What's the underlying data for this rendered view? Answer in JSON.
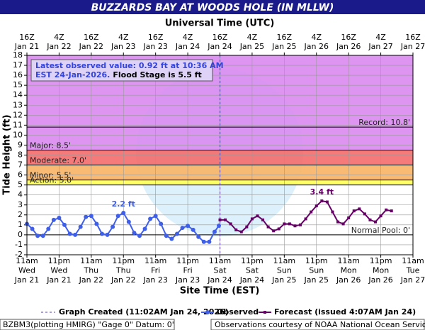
{
  "chart_data": {
    "type": "hydrograph",
    "title": "BUZZARDS BAY AT WOODS HOLE (IN MLLW)",
    "top_axis_label": "Universal Time (UTC)",
    "xlabel": "Site Time (EST)",
    "ylabel": "Tide Height (ft)",
    "xlim": [
      "2026-01-21T11:00",
      "2026-01-27T11:00"
    ],
    "ylim": [
      -2,
      18
    ],
    "yticks": [
      -2,
      -1,
      0,
      1,
      2,
      3,
      4,
      5,
      6,
      7,
      8,
      9,
      10,
      11,
      12,
      13,
      14,
      15,
      16,
      17,
      18
    ],
    "grid": true,
    "xticks": [
      {
        "value": "2026-01-21T11:00",
        "label": [
          "11am",
          "Wed",
          "Jan 21"
        ]
      },
      {
        "value": "2026-01-21T23:00",
        "label": [
          "11pm",
          "Wed",
          "Jan 21"
        ]
      },
      {
        "value": "2026-01-22T11:00",
        "label": [
          "11am",
          "Thu",
          "Jan 22"
        ]
      },
      {
        "value": "2026-01-22T23:00",
        "label": [
          "11pm",
          "Thu",
          "Jan 22"
        ]
      },
      {
        "value": "2026-01-23T11:00",
        "label": [
          "11am",
          "Fri",
          "Jan 23"
        ]
      },
      {
        "value": "2026-01-23T23:00",
        "label": [
          "11pm",
          "Fri",
          "Jan 23"
        ]
      },
      {
        "value": "2026-01-24T11:00",
        "label": [
          "11am",
          "Sat",
          "Jan 24"
        ]
      },
      {
        "value": "2026-01-24T23:00",
        "label": [
          "11pm",
          "Sat",
          "Jan 24"
        ]
      },
      {
        "value": "2026-01-25T11:00",
        "label": [
          "11am",
          "Sun",
          "Jan 25"
        ]
      },
      {
        "value": "2026-01-25T23:00",
        "label": [
          "11pm",
          "Sun",
          "Jan 25"
        ]
      },
      {
        "value": "2026-01-26T11:00",
        "label": [
          "11am",
          "Mon",
          "Jan 26"
        ]
      },
      {
        "value": "2026-01-26T23:00",
        "label": [
          "11pm",
          "Mon",
          "Jan 26"
        ]
      },
      {
        "value": "2026-01-27T11:00",
        "label": [
          "11am",
          "Tue",
          "Jan 27"
        ]
      }
    ],
    "top_xticks": [
      {
        "value": "2026-01-21T11:00",
        "label": [
          "16Z",
          "Jan 21"
        ]
      },
      {
        "value": "2026-01-21T23:00",
        "label": [
          "4Z",
          "Jan 22"
        ]
      },
      {
        "value": "2026-01-22T11:00",
        "label": [
          "16Z",
          "Jan 22"
        ]
      },
      {
        "value": "2026-01-22T23:00",
        "label": [
          "4Z",
          "Jan 23"
        ]
      },
      {
        "value": "2026-01-23T11:00",
        "label": [
          "16Z",
          "Jan 23"
        ]
      },
      {
        "value": "2026-01-23T23:00",
        "label": [
          "4Z",
          "Jan 24"
        ]
      },
      {
        "value": "2026-01-24T11:00",
        "label": [
          "16Z",
          "Jan 24"
        ]
      },
      {
        "value": "2026-01-24T23:00",
        "label": [
          "4Z",
          "Jan 25"
        ]
      },
      {
        "value": "2026-01-25T11:00",
        "label": [
          "16Z",
          "Jan 25"
        ]
      },
      {
        "value": "2026-01-25T23:00",
        "label": [
          "4Z",
          "Jan 26"
        ]
      },
      {
        "value": "2026-01-26T11:00",
        "label": [
          "16Z",
          "Jan 26"
        ]
      },
      {
        "value": "2026-01-26T23:00",
        "label": [
          "4Z",
          "Jan 27"
        ]
      },
      {
        "value": "2026-01-27T11:00",
        "label": [
          "16Z",
          "Jan 27"
        ]
      }
    ],
    "thresholds": [
      {
        "label": "Record: 10.8'",
        "value": 10.8,
        "label_side": "right"
      },
      {
        "label": "Major: 8.5'",
        "value": 8.5,
        "band_color": "#d98af0",
        "label_side": "left"
      },
      {
        "label": "Moderate: 7.0'",
        "value": 7.0,
        "band_color": "#f46c6c",
        "label_side": "left"
      },
      {
        "label": "Minor: 5.5'",
        "value": 5.5,
        "band_color": "#f8b465",
        "label_side": "left"
      },
      {
        "label": "Action: 5.0'",
        "value": 5.0,
        "band_color": "#ffff55",
        "label_side": "left"
      },
      {
        "label": "Normal Pool: 0'",
        "value": 0,
        "label_side": "right"
      }
    ],
    "created": {
      "x": "2026-01-24T11:02",
      "label": "Graph Created (11:02AM Jan 24, 2026)",
      "color": "#5a3fa0"
    },
    "latest_note": [
      "Latest observed value: 0.92 ft at 10:36 AM",
      "EST 24-Jan-2026.",
      "Flood Stage is 5.5 ft"
    ],
    "series": [
      {
        "name": "Observed",
        "color": "#3f5fe8",
        "marker": "circle",
        "peak_label": "2.2 ft",
        "x": [
          "2026-01-21T11:00",
          "2026-01-21T13:00",
          "2026-01-21T15:00",
          "2026-01-21T17:00",
          "2026-01-21T19:00",
          "2026-01-21T21:00",
          "2026-01-21T23:00",
          "2026-01-22T01:00",
          "2026-01-22T03:00",
          "2026-01-22T05:00",
          "2026-01-22T07:00",
          "2026-01-22T09:00",
          "2026-01-22T11:00",
          "2026-01-22T13:00",
          "2026-01-22T15:00",
          "2026-01-22T17:00",
          "2026-01-22T19:00",
          "2026-01-22T21:00",
          "2026-01-22T23:00",
          "2026-01-23T01:00",
          "2026-01-23T03:00",
          "2026-01-23T05:00",
          "2026-01-23T07:00",
          "2026-01-23T09:00",
          "2026-01-23T11:00",
          "2026-01-23T13:00",
          "2026-01-23T15:00",
          "2026-01-23T17:00",
          "2026-01-23T19:00",
          "2026-01-23T21:00",
          "2026-01-23T23:00",
          "2026-01-24T01:00",
          "2026-01-24T03:00",
          "2026-01-24T05:00",
          "2026-01-24T07:00",
          "2026-01-24T09:00",
          "2026-01-24T10:36"
        ],
        "values": [
          1.1,
          0.6,
          -0.1,
          -0.1,
          0.6,
          1.5,
          1.7,
          1.0,
          0.1,
          0.0,
          0.8,
          1.8,
          1.9,
          1.1,
          0.1,
          0.0,
          0.8,
          1.9,
          2.2,
          1.3,
          0.2,
          -0.1,
          0.6,
          1.6,
          1.9,
          1.1,
          -0.1,
          -0.4,
          0.1,
          0.7,
          0.9,
          0.5,
          -0.2,
          -0.7,
          -0.7,
          0.3,
          0.92
        ]
      },
      {
        "name": "Forecast (issued 4:07AM Jan 24)",
        "color": "#660066",
        "marker": "square",
        "peak_label": "3.4 ft",
        "x": [
          "2026-01-24T11:00",
          "2026-01-24T13:00",
          "2026-01-24T15:00",
          "2026-01-24T17:00",
          "2026-01-24T19:00",
          "2026-01-24T21:00",
          "2026-01-24T23:00",
          "2026-01-25T01:00",
          "2026-01-25T03:00",
          "2026-01-25T05:00",
          "2026-01-25T07:00",
          "2026-01-25T09:00",
          "2026-01-25T11:00",
          "2026-01-25T13:00",
          "2026-01-25T15:00",
          "2026-01-25T17:00",
          "2026-01-25T19:00",
          "2026-01-25T21:00",
          "2026-01-25T23:00",
          "2026-01-26T01:00",
          "2026-01-26T03:00",
          "2026-01-26T05:00",
          "2026-01-26T07:00",
          "2026-01-26T09:00",
          "2026-01-26T11:00",
          "2026-01-26T13:00",
          "2026-01-26T15:00",
          "2026-01-26T17:00",
          "2026-01-26T19:00",
          "2026-01-26T21:00",
          "2026-01-26T23:00",
          "2026-01-27T01:00",
          "2026-01-27T03:00"
        ],
        "values": [
          1.5,
          1.5,
          1.1,
          0.5,
          0.3,
          0.8,
          1.6,
          1.9,
          1.5,
          0.8,
          0.4,
          0.6,
          1.1,
          1.1,
          0.9,
          1.0,
          1.6,
          2.3,
          2.9,
          3.4,
          3.3,
          2.3,
          1.3,
          1.1,
          1.7,
          2.4,
          2.6,
          2.1,
          1.5,
          1.3,
          1.9,
          2.5,
          2.4
        ]
      }
    ],
    "footer": [
      "BZBM3(plotting HMIRG) \"Gage 0\" Datum: 0'",
      "Observations courtesy of NOAA National Ocean Service"
    ]
  }
}
